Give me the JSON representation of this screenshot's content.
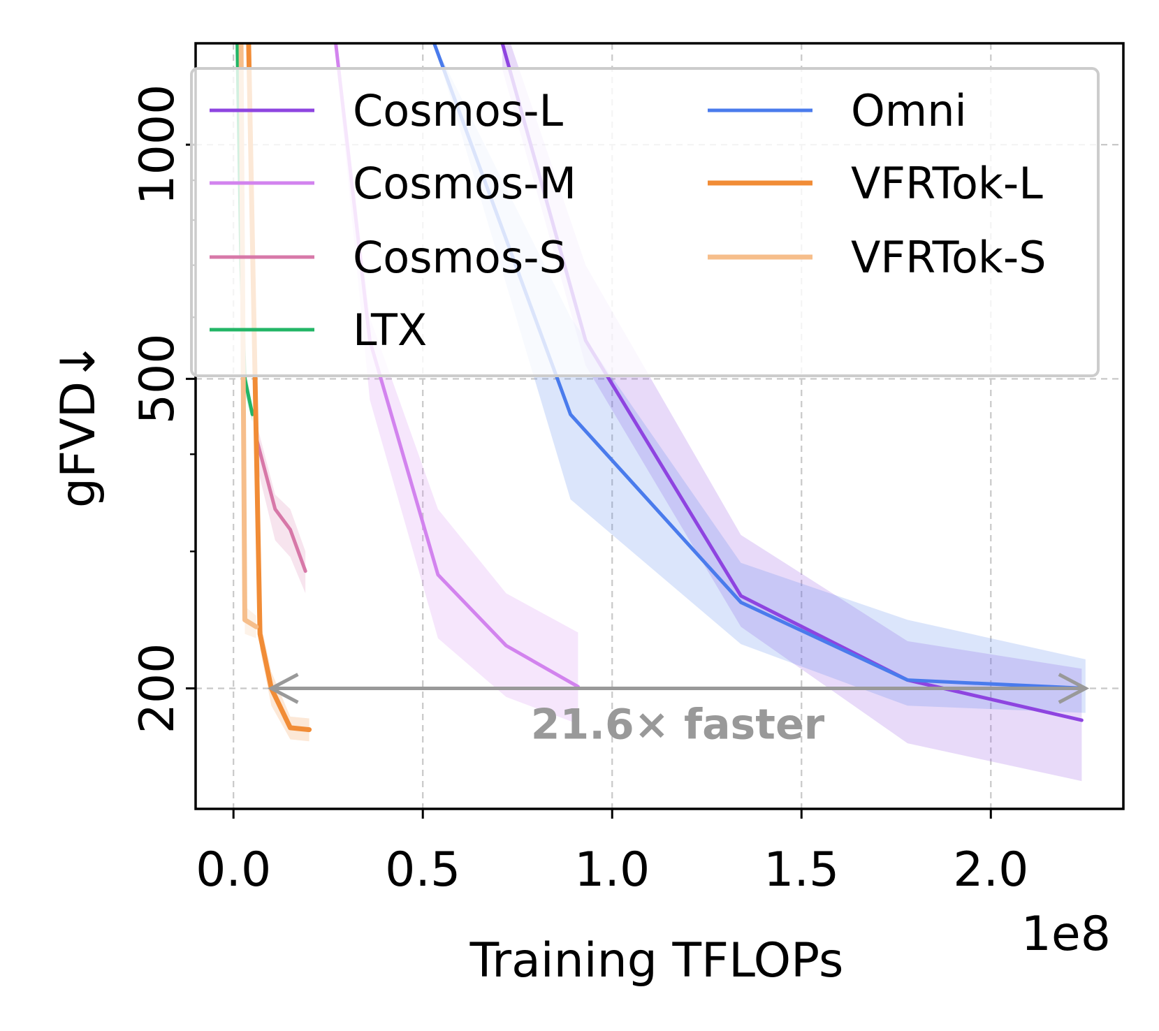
{
  "chart_data": {
    "type": "line",
    "title": "",
    "xlabel": "Training TFLOPs",
    "x_offset_text": "1e8",
    "ylabel": "gFVD↓",
    "yscale": "log",
    "xlim": [
      -0.1,
      2.35
    ],
    "ylim": [
      140,
      1350
    ],
    "xticks": [
      0.0,
      0.5,
      1.0,
      1.5,
      2.0
    ],
    "xtick_labels": [
      "0.0",
      "0.5",
      "1.0",
      "1.5",
      "2.0"
    ],
    "yticks": [
      200,
      500,
      1000
    ],
    "ytick_labels": [
      "200",
      "500",
      "1000"
    ],
    "y_minor_ticks": [
      300,
      400,
      600,
      700,
      800,
      900
    ],
    "grid": true,
    "legend_position": "top",
    "series": [
      {
        "name": "Cosmos-L",
        "color": "#8e44e0",
        "x": [
          0.71,
          0.93,
          1.34,
          1.78,
          2.24
        ],
        "y": [
          1350,
          560,
          263,
          205,
          182
        ],
        "lower": [
          1250,
          520,
          240,
          170,
          152
        ],
        "upper": [
          1450,
          700,
          315,
          230,
          212
        ]
      },
      {
        "name": "Cosmos-M",
        "color": "#d283ee",
        "x": [
          0.27,
          0.36,
          0.54,
          0.72,
          0.91
        ],
        "y": [
          1350,
          560,
          280,
          227,
          201
        ],
        "lower": [
          1300,
          470,
          232,
          195,
          180
        ],
        "upper": [
          1400,
          600,
          340,
          265,
          236
        ]
      },
      {
        "name": "Cosmos-S",
        "color": "#d778a8",
        "x": [
          0.04,
          0.06,
          0.11,
          0.15,
          0.19
        ],
        "y": [
          1350,
          420,
          340,
          320,
          283
        ],
        "lower": [
          1350,
          390,
          310,
          295,
          265
        ],
        "upper": [
          1350,
          440,
          355,
          340,
          300
        ]
      },
      {
        "name": "LTX",
        "color": "#22b566",
        "x": [
          0.01,
          0.02,
          0.03,
          0.05
        ],
        "y": [
          1350,
          700,
          500,
          450
        ],
        "lower": [
          1350,
          650,
          480,
          440
        ],
        "upper": [
          1350,
          750,
          520,
          460
        ]
      },
      {
        "name": "Omni",
        "color": "#4a7bec",
        "x": [
          0.53,
          0.89,
          1.34,
          1.78,
          2.25
        ],
        "y": [
          1350,
          450,
          258,
          205,
          200
        ],
        "lower": [
          1350,
          350,
          228,
          190,
          186
        ],
        "upper": [
          1350,
          600,
          290,
          245,
          218
        ]
      },
      {
        "name": "VFRTok-L",
        "color": "#f18c36",
        "x": [
          0.04,
          0.07,
          0.1,
          0.15,
          0.2
        ],
        "y": [
          1350,
          235,
          200,
          178,
          177
        ],
        "lower": [
          1350,
          225,
          190,
          172,
          171
        ],
        "upper": [
          1350,
          245,
          210,
          184,
          183
        ]
      },
      {
        "name": "VFRTok-S",
        "color": "#f6be8b",
        "x": [
          0.02,
          0.03,
          0.06
        ],
        "y": [
          1350,
          245,
          240
        ],
        "lower": [
          1350,
          235,
          232
        ],
        "upper": [
          1350,
          255,
          248
        ]
      }
    ],
    "annotation": {
      "text": "21.6× faster",
      "arrow_from": {
        "x": 0.1,
        "y": 200
      },
      "arrow_to": {
        "x": 2.25,
        "y": 200
      },
      "color": "#999999"
    }
  }
}
